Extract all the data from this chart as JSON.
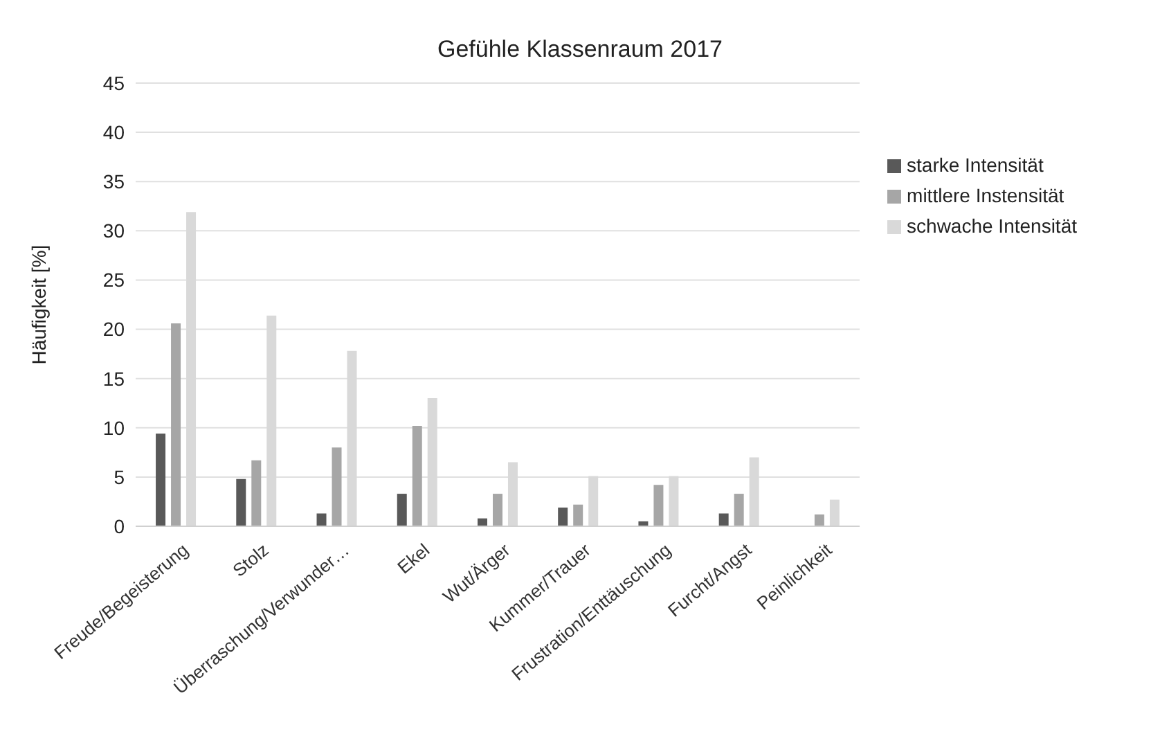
{
  "chart_data": {
    "type": "bar",
    "title": "Gefühle Klassenraum 2017",
    "ylabel": "Häufigkeit [%]",
    "categories": [
      "Freude/Begeisterung",
      "Stolz",
      "Überraschung/Verwunder…",
      "Ekel",
      "Wut/Ärger",
      "Kummer/Trauer",
      "Frustration/Enttäuschung",
      "Furcht/Angst",
      "Peinlichkeit"
    ],
    "series": [
      {
        "name": "starke Intensität",
        "color": "#595959",
        "values": [
          9.4,
          4.8,
          1.3,
          3.3,
          0.8,
          1.9,
          0.5,
          1.3,
          0
        ]
      },
      {
        "name": "mittlere Instensität",
        "color": "#a6a6a6",
        "values": [
          20.6,
          6.7,
          8.0,
          10.2,
          3.3,
          2.2,
          4.2,
          3.3,
          1.2
        ]
      },
      {
        "name": "schwache Intensität",
        "color": "#d9d9d9",
        "values": [
          31.9,
          21.4,
          17.8,
          13.0,
          6.5,
          5.1,
          5.1,
          7.0,
          2.7
        ]
      }
    ],
    "ylim": [
      0,
      45
    ],
    "yticks": [
      0,
      5,
      10,
      15,
      20,
      25,
      30,
      35,
      40,
      45
    ],
    "grid": "y",
    "legend": "top right"
  }
}
